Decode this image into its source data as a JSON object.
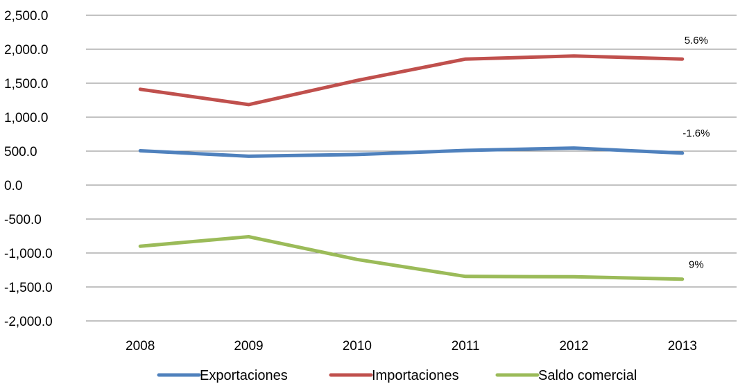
{
  "chart_data": {
    "type": "line",
    "categories": [
      "2008",
      "2009",
      "2010",
      "2011",
      "2012",
      "2013"
    ],
    "series": [
      {
        "name": "Exportaciones",
        "color": "#4F81BD",
        "values": [
          505,
          425,
          450,
          510,
          545,
          470
        ],
        "end_label": "-1.6%"
      },
      {
        "name": "Importaciones",
        "color": "#C0504D",
        "values": [
          1410,
          1185,
          1540,
          1855,
          1900,
          1855
        ],
        "end_label": "5.6%"
      },
      {
        "name": "Saldo comercial",
        "color": "#9BBB59",
        "values": [
          -900,
          -760,
          -1095,
          -1345,
          -1350,
          -1385
        ],
        "end_label": "9%"
      }
    ],
    "ylim": [
      -2000,
      2500
    ],
    "y_ticks": [
      -2000,
      -1500,
      -1000,
      -500,
      0,
      500,
      1000,
      1500,
      2000,
      2500
    ],
    "y_tick_labels": [
      "-2,000.0",
      "-1,500.0",
      "-1,000.0",
      "-500.0",
      "0.0",
      "500.0",
      "1,000.0",
      "1,500.0",
      "2,000.0",
      "2,500.0"
    ],
    "grid": true,
    "legend_position": "bottom"
  }
}
